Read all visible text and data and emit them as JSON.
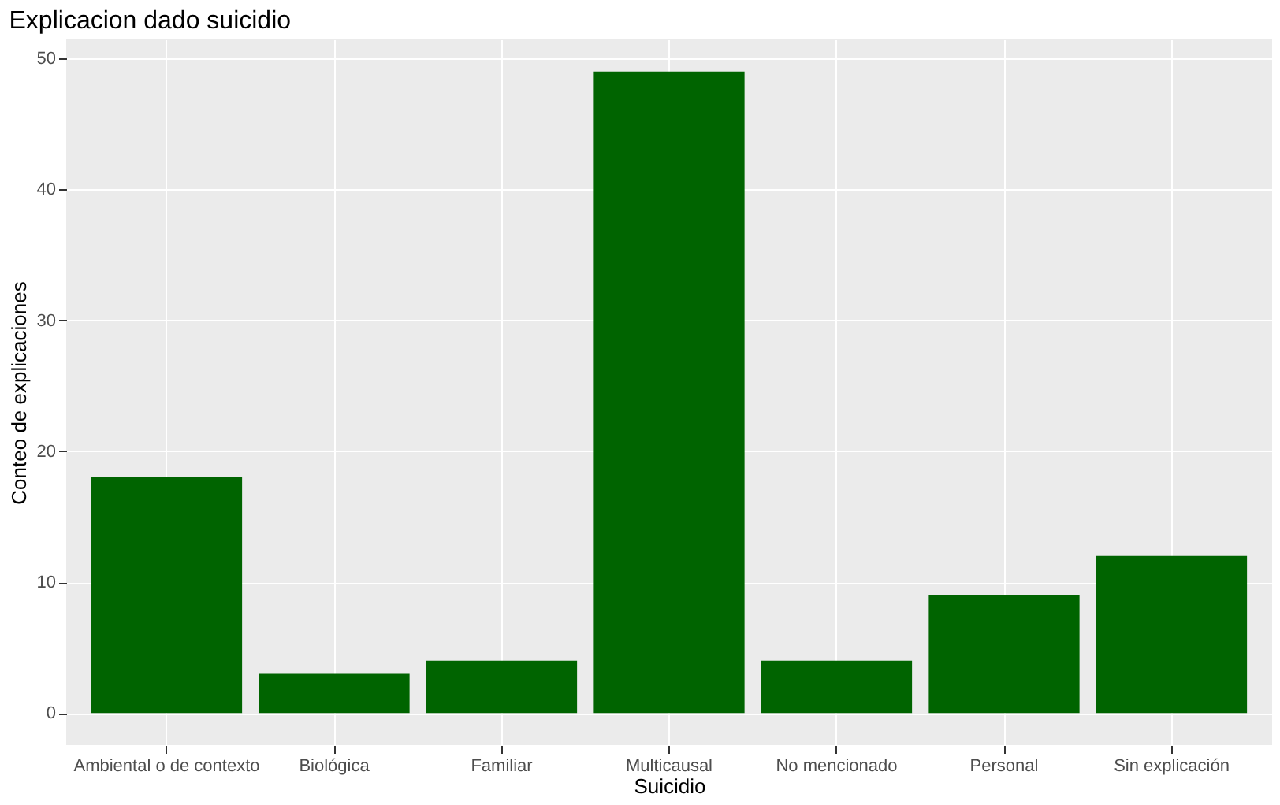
{
  "chart_data": {
    "type": "bar",
    "title": "Explicacion dado suicidio",
    "xlabel": "Suicidio",
    "ylabel": "Conteo de explicaciones",
    "categories": [
      "Ambiental o de contexto",
      "Biológica",
      "Familiar",
      "Multicausal",
      "No mencionado",
      "Personal",
      "Sin explicación"
    ],
    "values": [
      18,
      3,
      4,
      49,
      4,
      9,
      12
    ],
    "color": "#006400",
    "ylim": [
      -2.45,
      51.45
    ],
    "yticks": [
      0,
      10,
      20,
      30,
      40,
      50
    ],
    "grid": true
  }
}
